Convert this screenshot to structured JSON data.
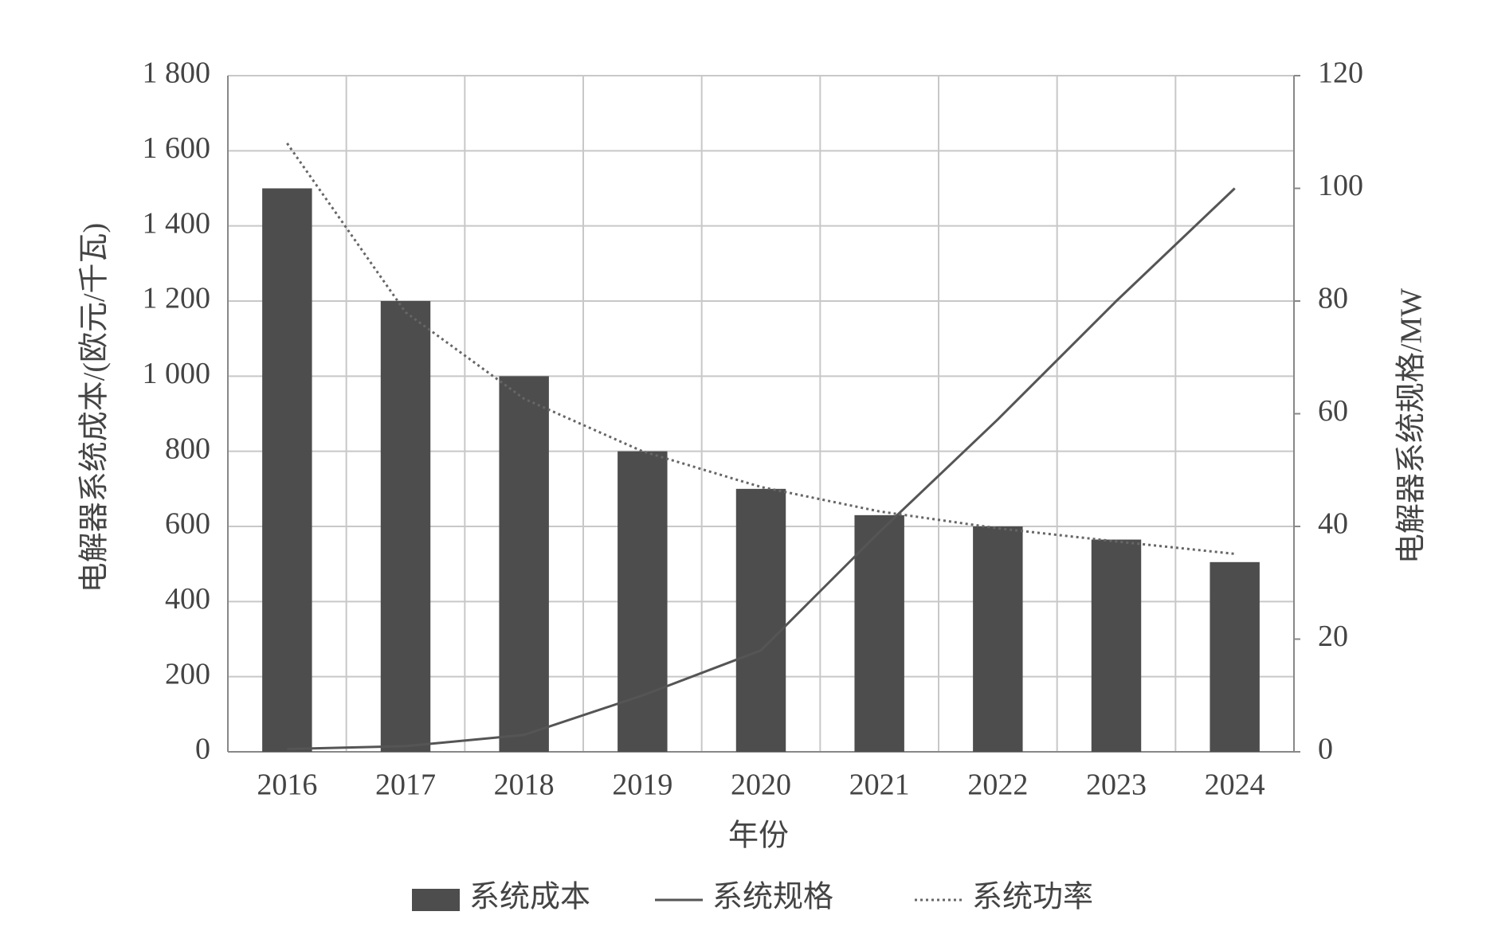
{
  "chart_data": {
    "type": "bar",
    "x_label": "年份",
    "y_label": "电解器系统成本/(欧元/千瓦)",
    "y2_label": "电解器系统规格/MW",
    "categories": [
      "2016",
      "2017",
      "2018",
      "2019",
      "2020",
      "2021",
      "2022",
      "2023",
      "2024"
    ],
    "series": [
      {
        "name": "系统成本",
        "type": "bar",
        "color": "#4d4d4d",
        "values": [
          1500,
          1200,
          1000,
          800,
          700,
          630,
          600,
          565,
          505
        ]
      },
      {
        "name": "系统规格",
        "type": "line",
        "axis": "y2",
        "color": "#555555",
        "values": [
          0.5,
          1,
          3,
          10,
          18,
          39,
          59,
          80,
          100
        ]
      },
      {
        "name": "系统功率",
        "type": "line",
        "style": "dotted",
        "color": "#666666",
        "values": [
          1620,
          1170,
          940,
          800,
          705,
          640,
          595,
          560,
          527
        ]
      }
    ],
    "ylim": [
      0,
      1800
    ],
    "yticks": [
      0,
      200,
      400,
      600,
      800,
      {
        "value": 1000,
        "label": "1 000"
      },
      {
        "value": 1200,
        "label": "1 200"
      },
      {
        "value": 1400,
        "label": "1 400"
      },
      {
        "value": 1600,
        "label": "1 600"
      },
      {
        "value": 1800,
        "label": "1 800"
      }
    ],
    "y2lim": [
      0,
      120
    ],
    "y2ticks": [
      0,
      20,
      40,
      60,
      80,
      100,
      120
    ],
    "grid": true,
    "legend": "bottom"
  }
}
